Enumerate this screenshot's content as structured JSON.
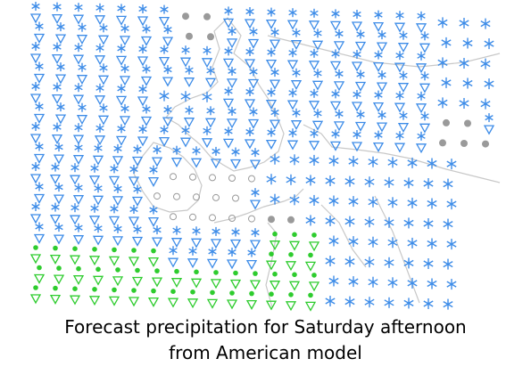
{
  "caption": {
    "line1": "Forecast precipitation for Saturday afternoon",
    "line2": "from American model"
  }
}
